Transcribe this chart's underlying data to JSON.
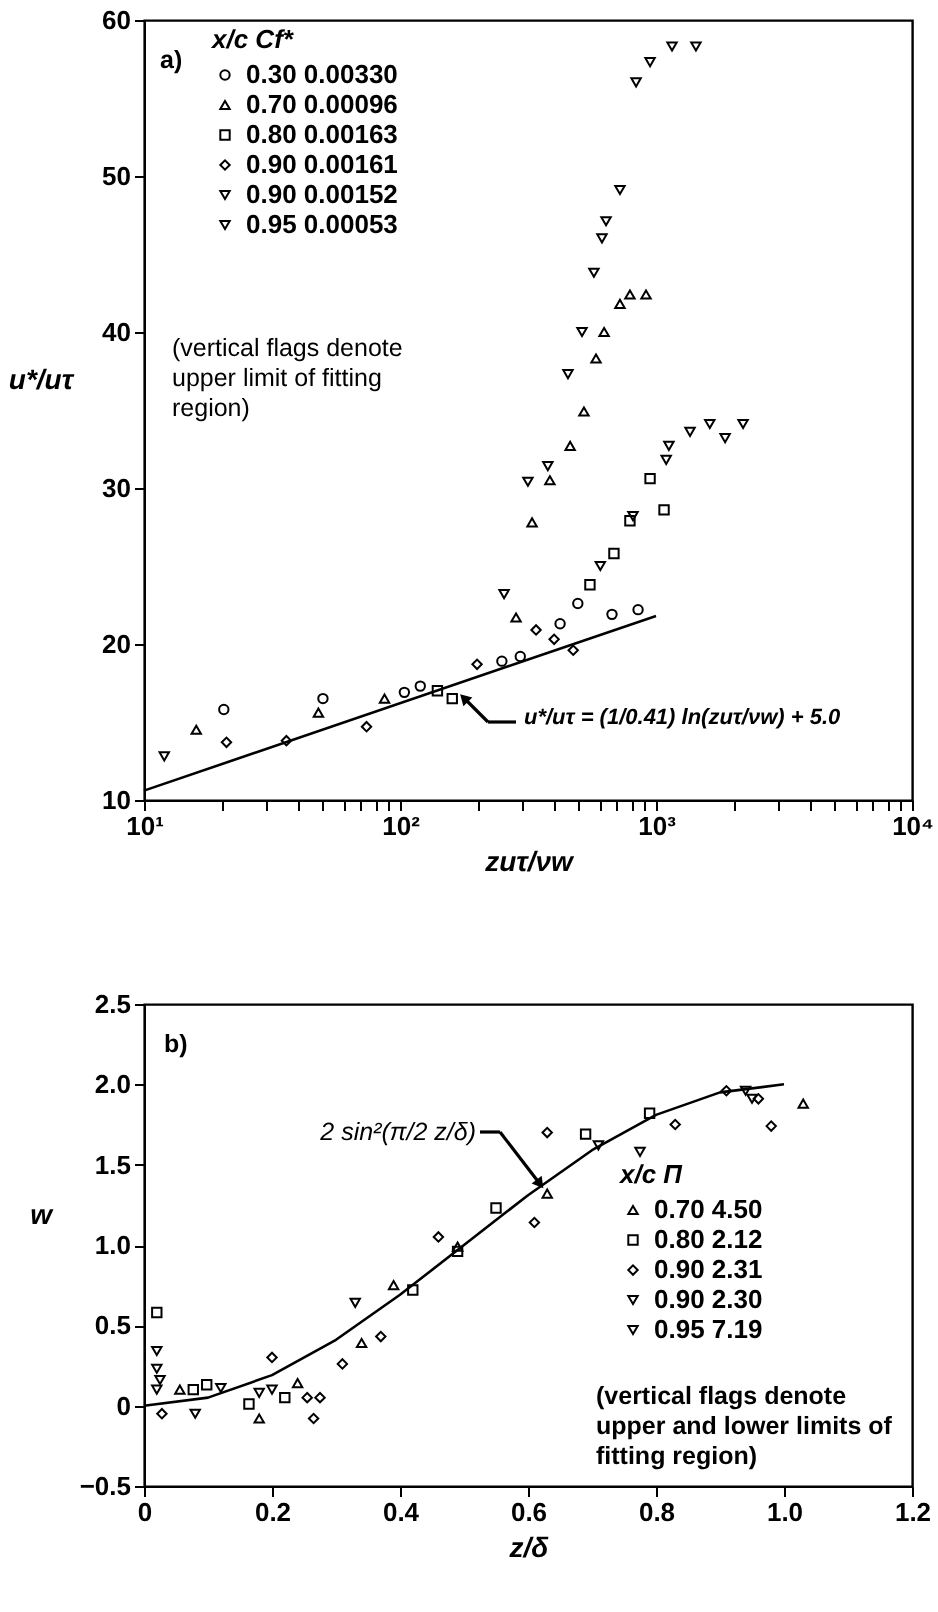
{
  "chart_data": [
    {
      "type": "scatter",
      "log": "x",
      "xlabel": "zuτ/νw",
      "ylabel": "u*/uτ",
      "legend": "top left",
      "legend_title": "x/c      Cf*",
      "xlim": [
        10,
        10000
      ],
      "ylim": [
        10,
        60
      ],
      "xticks": [
        {
          "value": 10,
          "label": "10¹"
        },
        {
          "value": 20,
          "label": null
        },
        {
          "value": 30,
          "label": null
        },
        {
          "value": 40,
          "label": null
        },
        {
          "value": 50,
          "label": null
        },
        {
          "value": 60,
          "label": null
        },
        {
          "value": 70,
          "label": null
        },
        {
          "value": 80,
          "label": null
        },
        {
          "value": 90,
          "label": null
        },
        {
          "value": 100,
          "label": "10²"
        },
        {
          "value": 200,
          "label": null
        },
        {
          "value": 300,
          "label": null
        },
        {
          "value": 400,
          "label": null
        },
        {
          "value": 500,
          "label": null
        },
        {
          "value": 600,
          "label": null
        },
        {
          "value": 700,
          "label": null
        },
        {
          "value": 800,
          "label": null
        },
        {
          "value": 900,
          "label": null
        },
        {
          "value": 1000,
          "label": "10³"
        },
        {
          "value": 2000,
          "label": null
        },
        {
          "value": 3000,
          "label": null
        },
        {
          "value": 4000,
          "label": null
        },
        {
          "value": 5000,
          "label": null
        },
        {
          "value": 6000,
          "label": null
        },
        {
          "value": 7000,
          "label": null
        },
        {
          "value": 8000,
          "label": null
        },
        {
          "value": 9000,
          "label": null
        },
        {
          "value": 10000,
          "label": "10⁴"
        }
      ],
      "yticks": [
        10,
        20,
        30,
        40,
        50,
        60
      ],
      "annotations": [
        "a)",
        "(vertical flags denote upper limit of fitting region)",
        "u*/uτ = (1/0.41) ln(zuτ/νw) + 5.0"
      ],
      "series": [
        {
          "name": "0.30      0.00330",
          "color": "#000000",
          "marker": "circle",
          "x": [
            20.5,
            50,
            104,
            120,
            250,
            295,
            422,
            495,
            673,
            851
          ],
          "values": [
            15.8,
            16.5,
            16.9,
            17.3,
            18.9,
            19.2,
            21.3,
            22.6,
            21.9,
            22.2
          ]
        },
        {
          "name": "0.70      0.00096",
          "color": "#000000",
          "marker": "triangle",
          "x": [
            16,
            48,
            87,
            284,
            328,
            385,
            462,
            523,
            583,
            627,
            723,
            791,
            914
          ],
          "values": [
            14.5,
            15.6,
            16.5,
            21.7,
            27.8,
            30.5,
            32.7,
            34.9,
            38.3,
            40.0,
            41.8,
            42.4,
            42.4
          ]
        },
        {
          "name": "0.80      0.00163",
          "color": "#000000",
          "marker": "square",
          "x": [
            140,
            160,
            552,
            685,
            791,
            948,
            1075
          ],
          "values": [
            17.0,
            16.5,
            23.8,
            25.8,
            27.9,
            30.6,
            28.6
          ]
        },
        {
          "name": "0.90      0.00161",
          "color": "#000000",
          "marker": "diamond",
          "x": [
            21,
            36,
            74,
            200,
            340,
            400,
            475
          ],
          "values": [
            13.7,
            13.8,
            14.7,
            18.7,
            20.9,
            20.3,
            19.6
          ]
        },
        {
          "name": "0.90      0.00152",
          "color": "#000000",
          "marker": "triangle-down",
          "x": [
            606,
            813,
            1096,
            1123,
            1358,
            1622,
            1862,
            2188
          ],
          "values": [
            25.0,
            28.2,
            31.8,
            32.7,
            33.6,
            34.1,
            33.2,
            34.1
          ]
        },
        {
          "name": "0.95      0.00053",
          "color": "#000000",
          "marker": "triangle-down",
          "x": [
            12,
            255,
            316,
            378,
            453,
            514,
            572,
            615,
            638,
            723,
            836,
            948,
            1155,
            1432
          ],
          "values": [
            12.8,
            23.2,
            30.4,
            31.4,
            37.3,
            40.0,
            43.8,
            46.0,
            47.1,
            49.1,
            56.0,
            57.3,
            58.3,
            58.3
          ]
        },
        {
          "type": "line",
          "color": "#000000",
          "x": [
            10,
            1000
          ],
          "values": [
            10.6,
            21.8
          ]
        }
      ]
    },
    {
      "type": "scatter",
      "xlabel": "z/δ",
      "ylabel": "w",
      "legend": "right",
      "legend_title": "x/c      Π",
      "xlim": [
        0,
        1.2
      ],
      "ylim": [
        -0.5,
        2.5
      ],
      "xticks": [
        0,
        0.2,
        0.4,
        0.6,
        0.8,
        {
          "value": 1,
          "label": "1.0"
        },
        1.2
      ],
      "yticks": [
        {
          "value": -0.5,
          "label": "−0.5"
        },
        0,
        0.5,
        {
          "value": 1,
          "label": "1.0"
        },
        1.5,
        {
          "value": 2,
          "label": "2.0"
        },
        2.5
      ],
      "annotations": [
        "b)",
        "2 sin²(π/2 z/δ)",
        "(vertical flags denote upper and lower limits of fitting region)"
      ],
      "series": [
        {
          "name": "0.70      4.50",
          "color": "#000000",
          "marker": "triangle",
          "x": [
            0.056,
            0.18,
            0.24,
            0.34,
            0.39,
            0.49,
            0.63,
            1.03
          ],
          "values": [
            0.1,
            -0.08,
            0.14,
            0.39,
            0.75,
            0.99,
            1.32,
            1.88
          ]
        },
        {
          "name": "0.80      2.12",
          "color": "#000000",
          "marker": "square",
          "x": [
            0.02,
            0.077,
            0.098,
            0.164,
            0.22,
            0.42,
            0.49,
            0.55,
            0.69,
            0.79
          ],
          "values": [
            0.58,
            0.1,
            0.13,
            0.01,
            0.05,
            0.72,
            0.96,
            1.23,
            1.69,
            1.82
          ]
        },
        {
          "name": "0.90      2.31",
          "color": "#000000",
          "marker": "diamond",
          "x": [
            0.028,
            0.2,
            0.255,
            0.265,
            0.275,
            0.31,
            0.37,
            0.46,
            0.61,
            0.63,
            0.83,
            0.91,
            0.96,
            0.98
          ],
          "values": [
            -0.05,
            0.3,
            0.05,
            -0.08,
            0.05,
            0.26,
            0.43,
            1.05,
            1.14,
            1.7,
            1.75,
            1.96,
            1.91,
            1.74
          ]
        },
        {
          "name": "0.90      2.30",
          "color": "#000000",
          "marker": "triangle-down",
          "x": [
            0.02,
            0.02,
            0.025,
            0.18,
            0.33,
            0.71,
            0.775,
            0.94
          ],
          "values": [
            0.34,
            0.23,
            0.16,
            0.08,
            0.64,
            1.62,
            1.58,
            1.96
          ]
        },
        {
          "name": "0.95      7.19",
          "color": "#000000",
          "marker": "triangle-down",
          "x": [
            0.02,
            0.08,
            0.12,
            0.2,
            0.95
          ],
          "values": [
            0.1,
            -0.05,
            0.11,
            0.1,
            1.91
          ]
        },
        {
          "type": "line",
          "color": "#000000",
          "x": [
            0,
            0.1,
            0.2,
            0.3,
            0.4,
            0.5,
            0.6,
            0.7,
            0.8,
            0.9,
            1.0
          ],
          "values": [
            0,
            0.05,
            0.19,
            0.41,
            0.69,
            1.0,
            1.31,
            1.59,
            1.81,
            1.95,
            2.0
          ]
        }
      ]
    }
  ]
}
